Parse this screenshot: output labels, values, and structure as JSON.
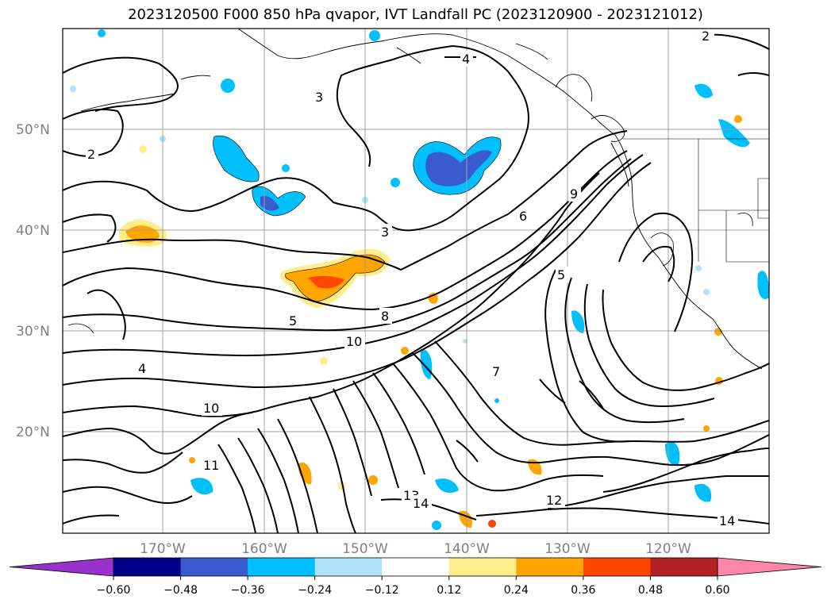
{
  "title": "2023120500 F000 850 hPa qvapor, IVT Landfall PC (2023120900 - 2023121012)",
  "lat_labels": [
    "50°N",
    "40°N",
    "30°N",
    "20°N"
  ],
  "lon_labels": [
    "170°W",
    "160°W",
    "150°W",
    "140°W",
    "130°W",
    "120°W"
  ],
  "colorbar": {
    "ticks": [
      "−0.60",
      "−0.48",
      "−0.36",
      "−0.24",
      "−0.12",
      "0.12",
      "0.24",
      "0.36",
      "0.48",
      "0.60"
    ],
    "colors": [
      "#9932cc",
      "#00008b",
      "#3a5bd0",
      "#00bfff",
      "#aee4fb",
      "#ffffff",
      "#ffec8b",
      "#ffa500",
      "#ff4500",
      "#b22222",
      "#ff85aa"
    ]
  },
  "contour_labels": [
    "2",
    "2",
    "3",
    "3",
    "4",
    "4",
    "5",
    "5",
    "6",
    "7",
    "8",
    "9",
    "10",
    "10",
    "11",
    "12",
    "13",
    "14",
    "14"
  ]
}
